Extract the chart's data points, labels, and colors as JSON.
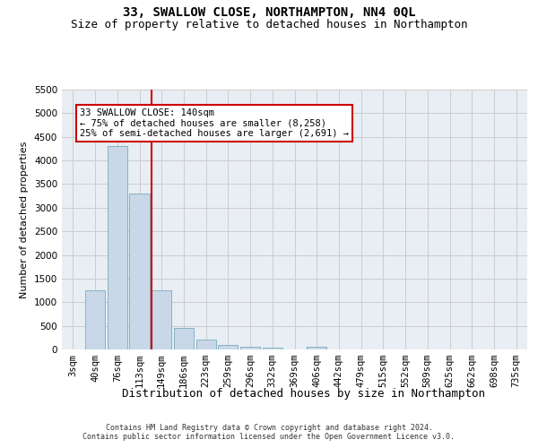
{
  "title": "33, SWALLOW CLOSE, NORTHAMPTON, NN4 0QL",
  "subtitle": "Size of property relative to detached houses in Northampton",
  "xlabel": "Distribution of detached houses by size in Northampton",
  "ylabel": "Number of detached properties",
  "categories": [
    "3sqm",
    "40sqm",
    "76sqm",
    "113sqm",
    "149sqm",
    "186sqm",
    "223sqm",
    "259sqm",
    "296sqm",
    "332sqm",
    "369sqm",
    "406sqm",
    "442sqm",
    "479sqm",
    "515sqm",
    "552sqm",
    "589sqm",
    "625sqm",
    "662sqm",
    "698sqm",
    "735sqm"
  ],
  "values": [
    0,
    1250,
    4300,
    3300,
    1250,
    450,
    200,
    100,
    60,
    40,
    0,
    50,
    0,
    0,
    0,
    0,
    0,
    0,
    0,
    0,
    0
  ],
  "bar_color": "#c8d8e8",
  "bar_edge_color": "#7aaabb",
  "grid_color": "#cccccc",
  "background_color": "#e8eef4",
  "vline_color": "#cc0000",
  "annotation_box_text": "33 SWALLOW CLOSE: 140sqm\n← 75% of detached houses are smaller (8,258)\n25% of semi-detached houses are larger (2,691) →",
  "annotation_box_color": "#cc0000",
  "ylim": [
    0,
    5500
  ],
  "yticks": [
    0,
    500,
    1000,
    1500,
    2000,
    2500,
    3000,
    3500,
    4000,
    4500,
    5000,
    5500
  ],
  "footer_line1": "Contains HM Land Registry data © Crown copyright and database right 2024.",
  "footer_line2": "Contains public sector information licensed under the Open Government Licence v3.0.",
  "title_fontsize": 10,
  "subtitle_fontsize": 9,
  "ylabel_fontsize": 8,
  "xlabel_fontsize": 9,
  "tick_fontsize": 7.5,
  "annot_fontsize": 7.5,
  "footer_fontsize": 6
}
